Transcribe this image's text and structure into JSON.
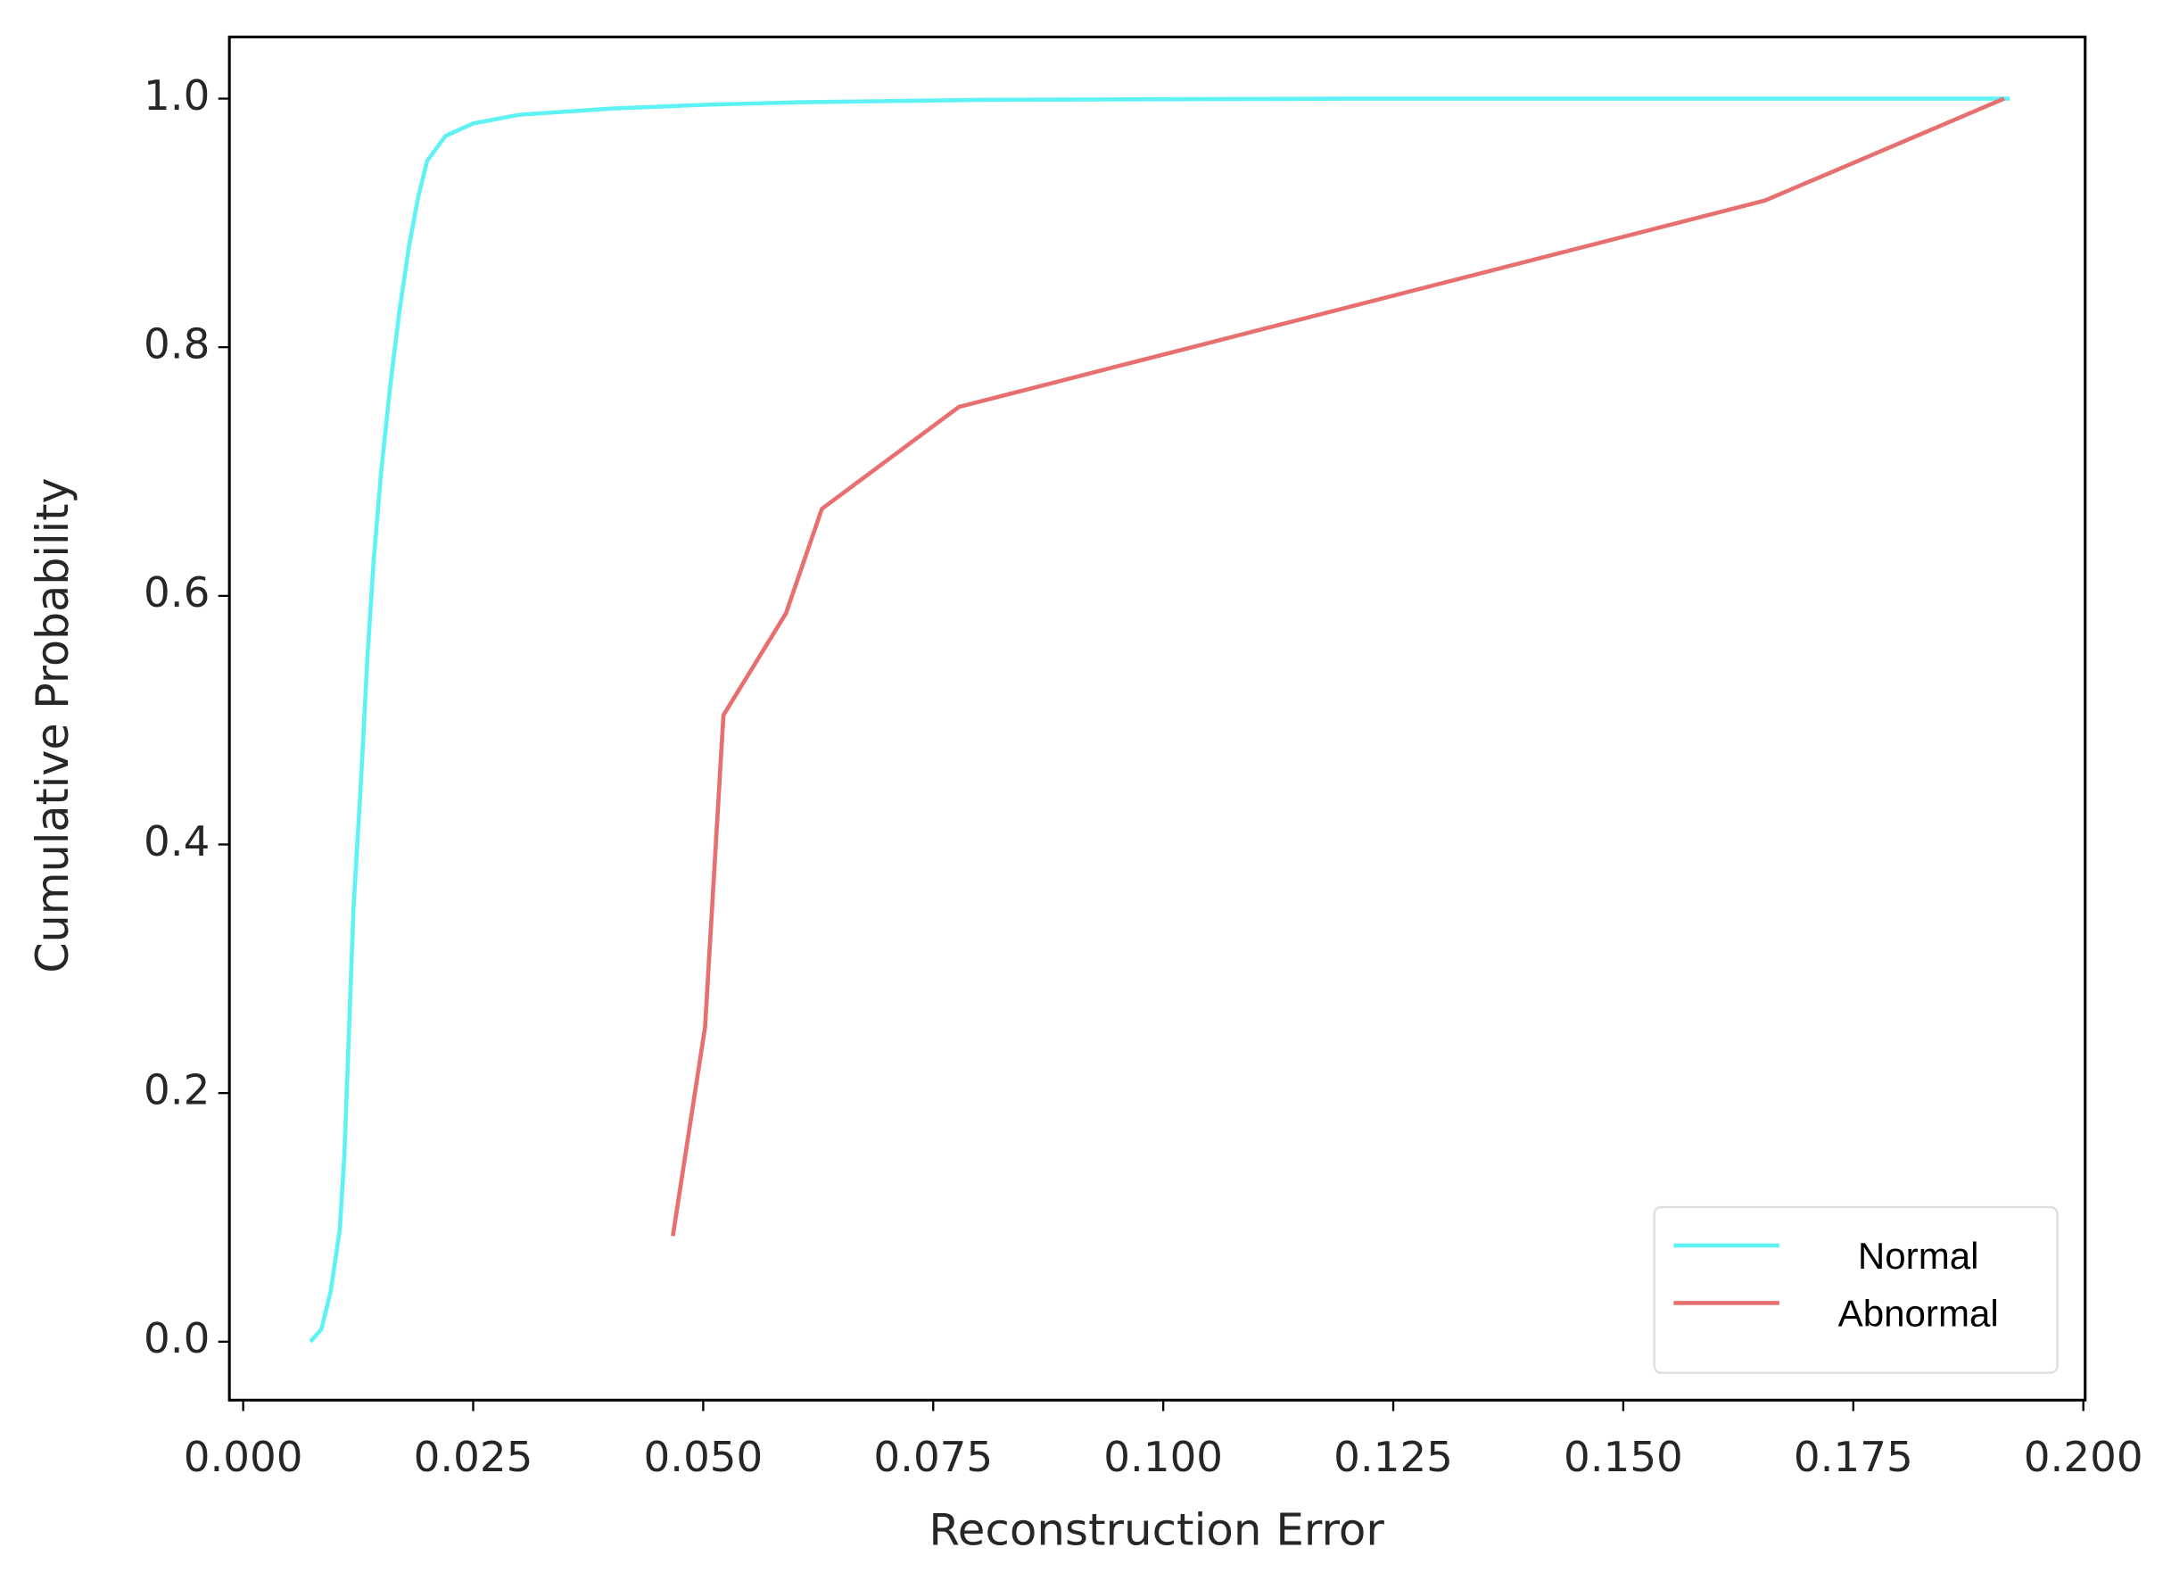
{
  "chart_data": {
    "type": "line",
    "x_label": "Reconstruction Error",
    "y_label": "Cumulative Probability",
    "xlim": [
      -0.0015,
      0.2002
    ],
    "ylim": [
      -0.047,
      1.0496
    ],
    "xticks": [
      {
        "value": 0,
        "label": "0.000"
      },
      0.025,
      {
        "value": 0.05,
        "label": "0.050"
      },
      0.075,
      {
        "value": 0.1,
        "label": "0.100"
      },
      0.125,
      {
        "value": 0.15,
        "label": "0.150"
      },
      0.175,
      {
        "value": 0.2,
        "label": "0.200"
      }
    ],
    "yticks": [
      {
        "value": 0,
        "label": "0.0"
      },
      0.2,
      0.4,
      0.6,
      0.8,
      {
        "value": 1,
        "label": "1.0"
      }
    ],
    "legend": "lower right",
    "series": [
      {
        "name": "Normal",
        "color": "#5ff2f5",
        "x": [
          0.0073,
          0.0085,
          0.0095,
          0.0105,
          0.011,
          0.0115,
          0.012,
          0.0128,
          0.0135,
          0.0142,
          0.015,
          0.016,
          0.017,
          0.018,
          0.019,
          0.02,
          0.022,
          0.025,
          0.03,
          0.04,
          0.05,
          0.06,
          0.08,
          0.12,
          0.192
        ],
        "values": [
          0.0,
          0.01,
          0.04,
          0.09,
          0.15,
          0.25,
          0.35,
          0.45,
          0.55,
          0.63,
          0.7,
          0.77,
          0.83,
          0.88,
          0.92,
          0.95,
          0.97,
          0.98,
          0.987,
          0.992,
          0.995,
          0.997,
          0.999,
          1.0,
          1.0
        ]
      },
      {
        "name": "Abnormal",
        "color": "#e86f6f",
        "x": [
          0.0467,
          0.0502,
          0.0522,
          0.059,
          0.0629,
          0.0778,
          0.1654,
          0.1914
        ],
        "values": [
          0.085,
          0.253,
          0.504,
          0.586,
          0.67,
          0.752,
          0.918,
          1.0
        ]
      }
    ]
  }
}
